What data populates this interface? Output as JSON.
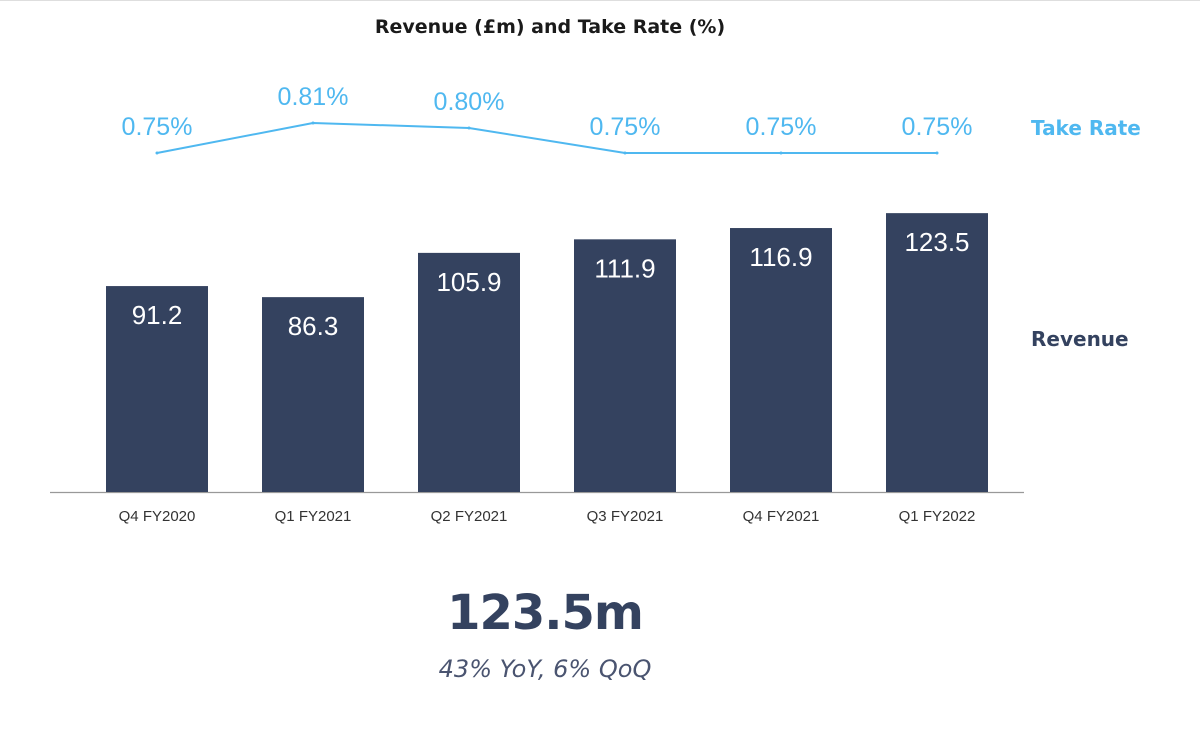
{
  "colors": {
    "bar": "#34425f",
    "line": "#4fb8f0",
    "axis": "#999999"
  },
  "chart_data": {
    "type": "bar",
    "title": "Revenue (£m) and Take Rate (%)",
    "categories": [
      "Q4 FY2020",
      "Q1 FY2021",
      "Q2 FY2021",
      "Q3 FY2021",
      "Q4 FY2021",
      "Q1 FY2022"
    ],
    "series": [
      {
        "name": "Revenue",
        "type": "bar",
        "values": [
          91.2,
          86.3,
          105.9,
          111.9,
          116.9,
          123.5
        ],
        "labels": [
          "91.2",
          "86.3",
          "105.9",
          "111.9",
          "116.9",
          "123.5"
        ]
      },
      {
        "name": "Take Rate",
        "type": "line",
        "values": [
          0.75,
          0.81,
          0.8,
          0.75,
          0.75,
          0.75
        ],
        "labels": [
          "0.75%",
          "0.81%",
          "0.80%",
          "0.75%",
          "0.75%",
          "0.75%"
        ]
      }
    ],
    "ylim": [
      0,
      140
    ],
    "grid": false,
    "legend": "right"
  },
  "kpi": {
    "value": "123.5m",
    "subtitle": "43% YoY, 6% QoQ"
  }
}
